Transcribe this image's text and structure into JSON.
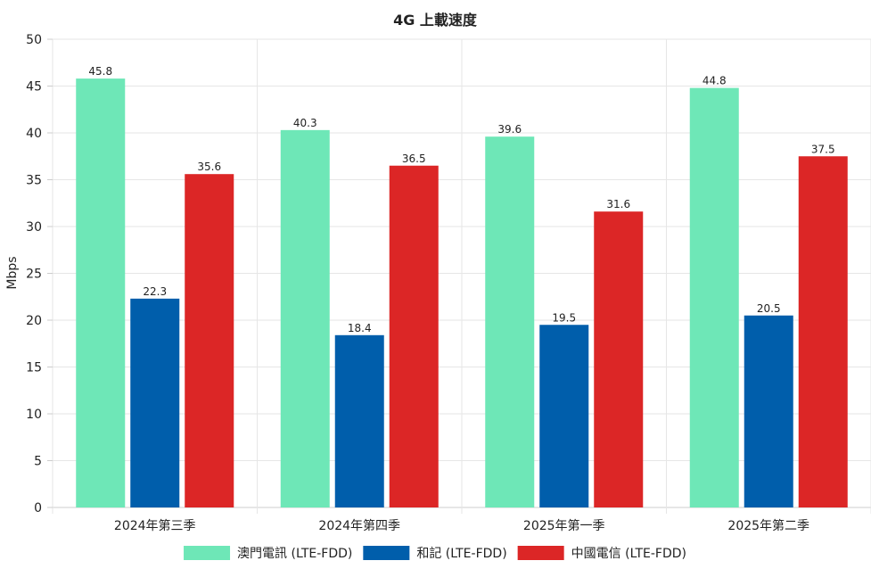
{
  "chart_data": {
    "type": "bar",
    "title": "4G 上載速度",
    "ylabel": "Mbps",
    "xlabel": "",
    "ylim": [
      0,
      50
    ],
    "ytick_step": 5,
    "grid": true,
    "legend_position": "bottom",
    "show_data_labels": true,
    "categories": [
      "2024年第三季",
      "2024年第四季",
      "2025年第一季",
      "2025年第二季"
    ],
    "series": [
      {
        "name": "澳門電訊 (LTE-FDD)",
        "color": "#6ee7b7",
        "values": [
          45.8,
          40.3,
          39.6,
          44.8
        ]
      },
      {
        "name": "和記 (LTE-FDD)",
        "color": "#005eab",
        "values": [
          22.3,
          18.4,
          19.5,
          20.5
        ]
      },
      {
        "name": "中國電信 (LTE-FDD)",
        "color": "#dc2626",
        "values": [
          35.6,
          36.5,
          31.6,
          37.5
        ]
      }
    ]
  }
}
